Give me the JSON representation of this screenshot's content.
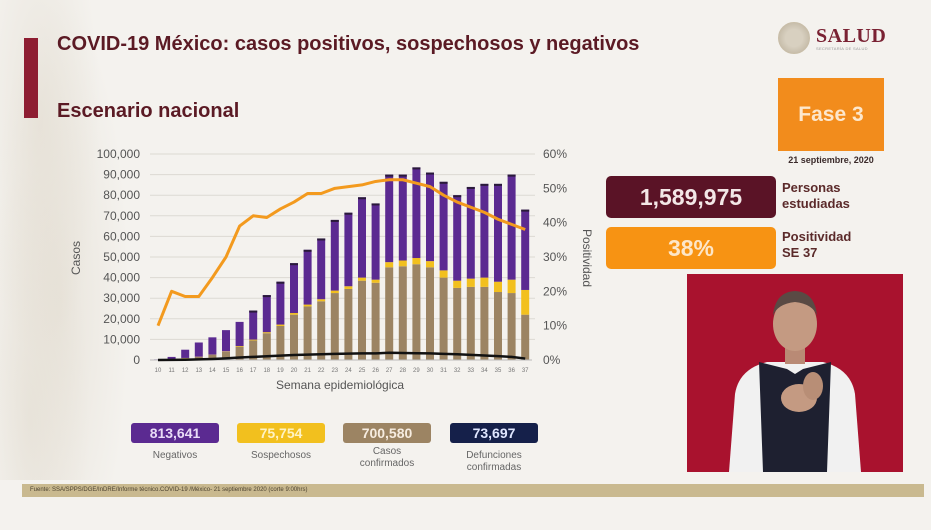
{
  "header": {
    "title": "COVID-19 México: casos positivos, sospechosos y negativos",
    "subtitle": "Escenario nacional"
  },
  "logo": {
    "text": "SALUD",
    "sub": "SECRETARÍA DE SALUD"
  },
  "phase": {
    "label": "Fase 3",
    "date": "21 septiembre, 2020"
  },
  "stats": [
    {
      "value": "1,589,975",
      "label_line1": "Personas",
      "label_line2": "estudiadas",
      "color": "#5a1326"
    },
    {
      "value": "38%",
      "label_line1": "Positividad",
      "label_line2": "SE 37",
      "color": "#f79313"
    }
  ],
  "legend": [
    {
      "value": "813,641",
      "label": "Negativos",
      "label2": "",
      "color": "#5b2a91",
      "text_color": "#e9dcf7"
    },
    {
      "value": "75,754",
      "label": "Sospechosos",
      "label2": "",
      "color": "#f2c01e",
      "text_color": "#fff3c4"
    },
    {
      "value": "700,580",
      "label": "Casos",
      "label2": "confirmados",
      "color": "#9c8463",
      "text_color": "#f6ece0"
    },
    {
      "value": "73,697",
      "label": "Defunciones",
      "label2": "confirmadas",
      "color": "#15204a",
      "text_color": "#dfe6ff"
    }
  ],
  "source": "Fuente: SSA/SPPS/DGE/InDRE/Informe técnico.COVID-19 /México- 21 septiembre 2020 (corte 9:00hrs)",
  "colors": {
    "negativos": "#5b2a91",
    "sospechosos": "#f2c01e",
    "confirmados": "#9c8463",
    "defunciones": "#111111",
    "positividad": "#f39a1e"
  },
  "chart_data": {
    "type": "bar",
    "stacked": true,
    "title": "",
    "xlabel": "Semana epidemiológica",
    "ylabel": "Casos",
    "y2label": "Positividad",
    "ylim": [
      0,
      100000
    ],
    "y2lim": [
      0,
      60
    ],
    "yticks": [
      "0",
      "10,000",
      "20,000",
      "30,000",
      "40,000",
      "50,000",
      "60,000",
      "70,000",
      "80,000",
      "90,000",
      "100,000"
    ],
    "y2ticks": [
      "0%",
      "10%",
      "20%",
      "30%",
      "40%",
      "50%",
      "60%"
    ],
    "grid": true,
    "categories": [
      "10",
      "11",
      "12",
      "13",
      "14",
      "15",
      "16",
      "17",
      "18",
      "19",
      "20",
      "21",
      "22",
      "23",
      "24",
      "25",
      "26",
      "27",
      "28",
      "29",
      "30",
      "31",
      "32",
      "33",
      "34",
      "35",
      "36",
      "37"
    ],
    "series": [
      {
        "name": "Casos confirmados",
        "type": "bar",
        "values": [
          100,
          400,
          900,
          1500,
          2500,
          4000,
          6500,
          9500,
          13000,
          16500,
          22000,
          26000,
          28500,
          32500,
          34500,
          38500,
          37500,
          45000,
          45500,
          46500,
          45000,
          40000,
          35000,
          35500,
          35500,
          33000,
          32500,
          22000
        ]
      },
      {
        "name": "Sospechosos",
        "type": "bar",
        "values": [
          0,
          0,
          100,
          100,
          100,
          200,
          300,
          400,
          500,
          700,
          800,
          900,
          1000,
          1200,
          1300,
          1500,
          1500,
          2500,
          2800,
          3000,
          3000,
          3500,
          3500,
          4000,
          4500,
          5000,
          6500,
          12000
        ]
      },
      {
        "name": "Negativos",
        "type": "bar",
        "values": [
          200,
          1100,
          4000,
          6900,
          8400,
          10300,
          11700,
          14100,
          18000,
          20800,
          24200,
          26600,
          29500,
          34300,
          35700,
          39000,
          37000,
          42500,
          41700,
          44000,
          43000,
          43000,
          41500,
          44500,
          45500,
          47500,
          51000,
          39000
        ]
      },
      {
        "name": "Defunciones confirmadas",
        "type": "line",
        "values": [
          10,
          50,
          150,
          300,
          500,
          800,
          1200,
          1500,
          1800,
          2100,
          2400,
          2600,
          2800,
          3000,
          3100,
          3200,
          3200,
          3500,
          3400,
          3300,
          3200,
          3000,
          2800,
          2500,
          2200,
          1900,
          1500,
          700
        ]
      },
      {
        "name": "Positividad (%)",
        "type": "line",
        "axis": "y2",
        "values": [
          10,
          20,
          18.5,
          18.5,
          24,
          30,
          39,
          42,
          41.5,
          44,
          46,
          48.5,
          48.5,
          50,
          50.5,
          51,
          52,
          52.5,
          52.5,
          51.5,
          50.5,
          48,
          46,
          44.5,
          43,
          41,
          39.5,
          38
        ]
      }
    ]
  }
}
